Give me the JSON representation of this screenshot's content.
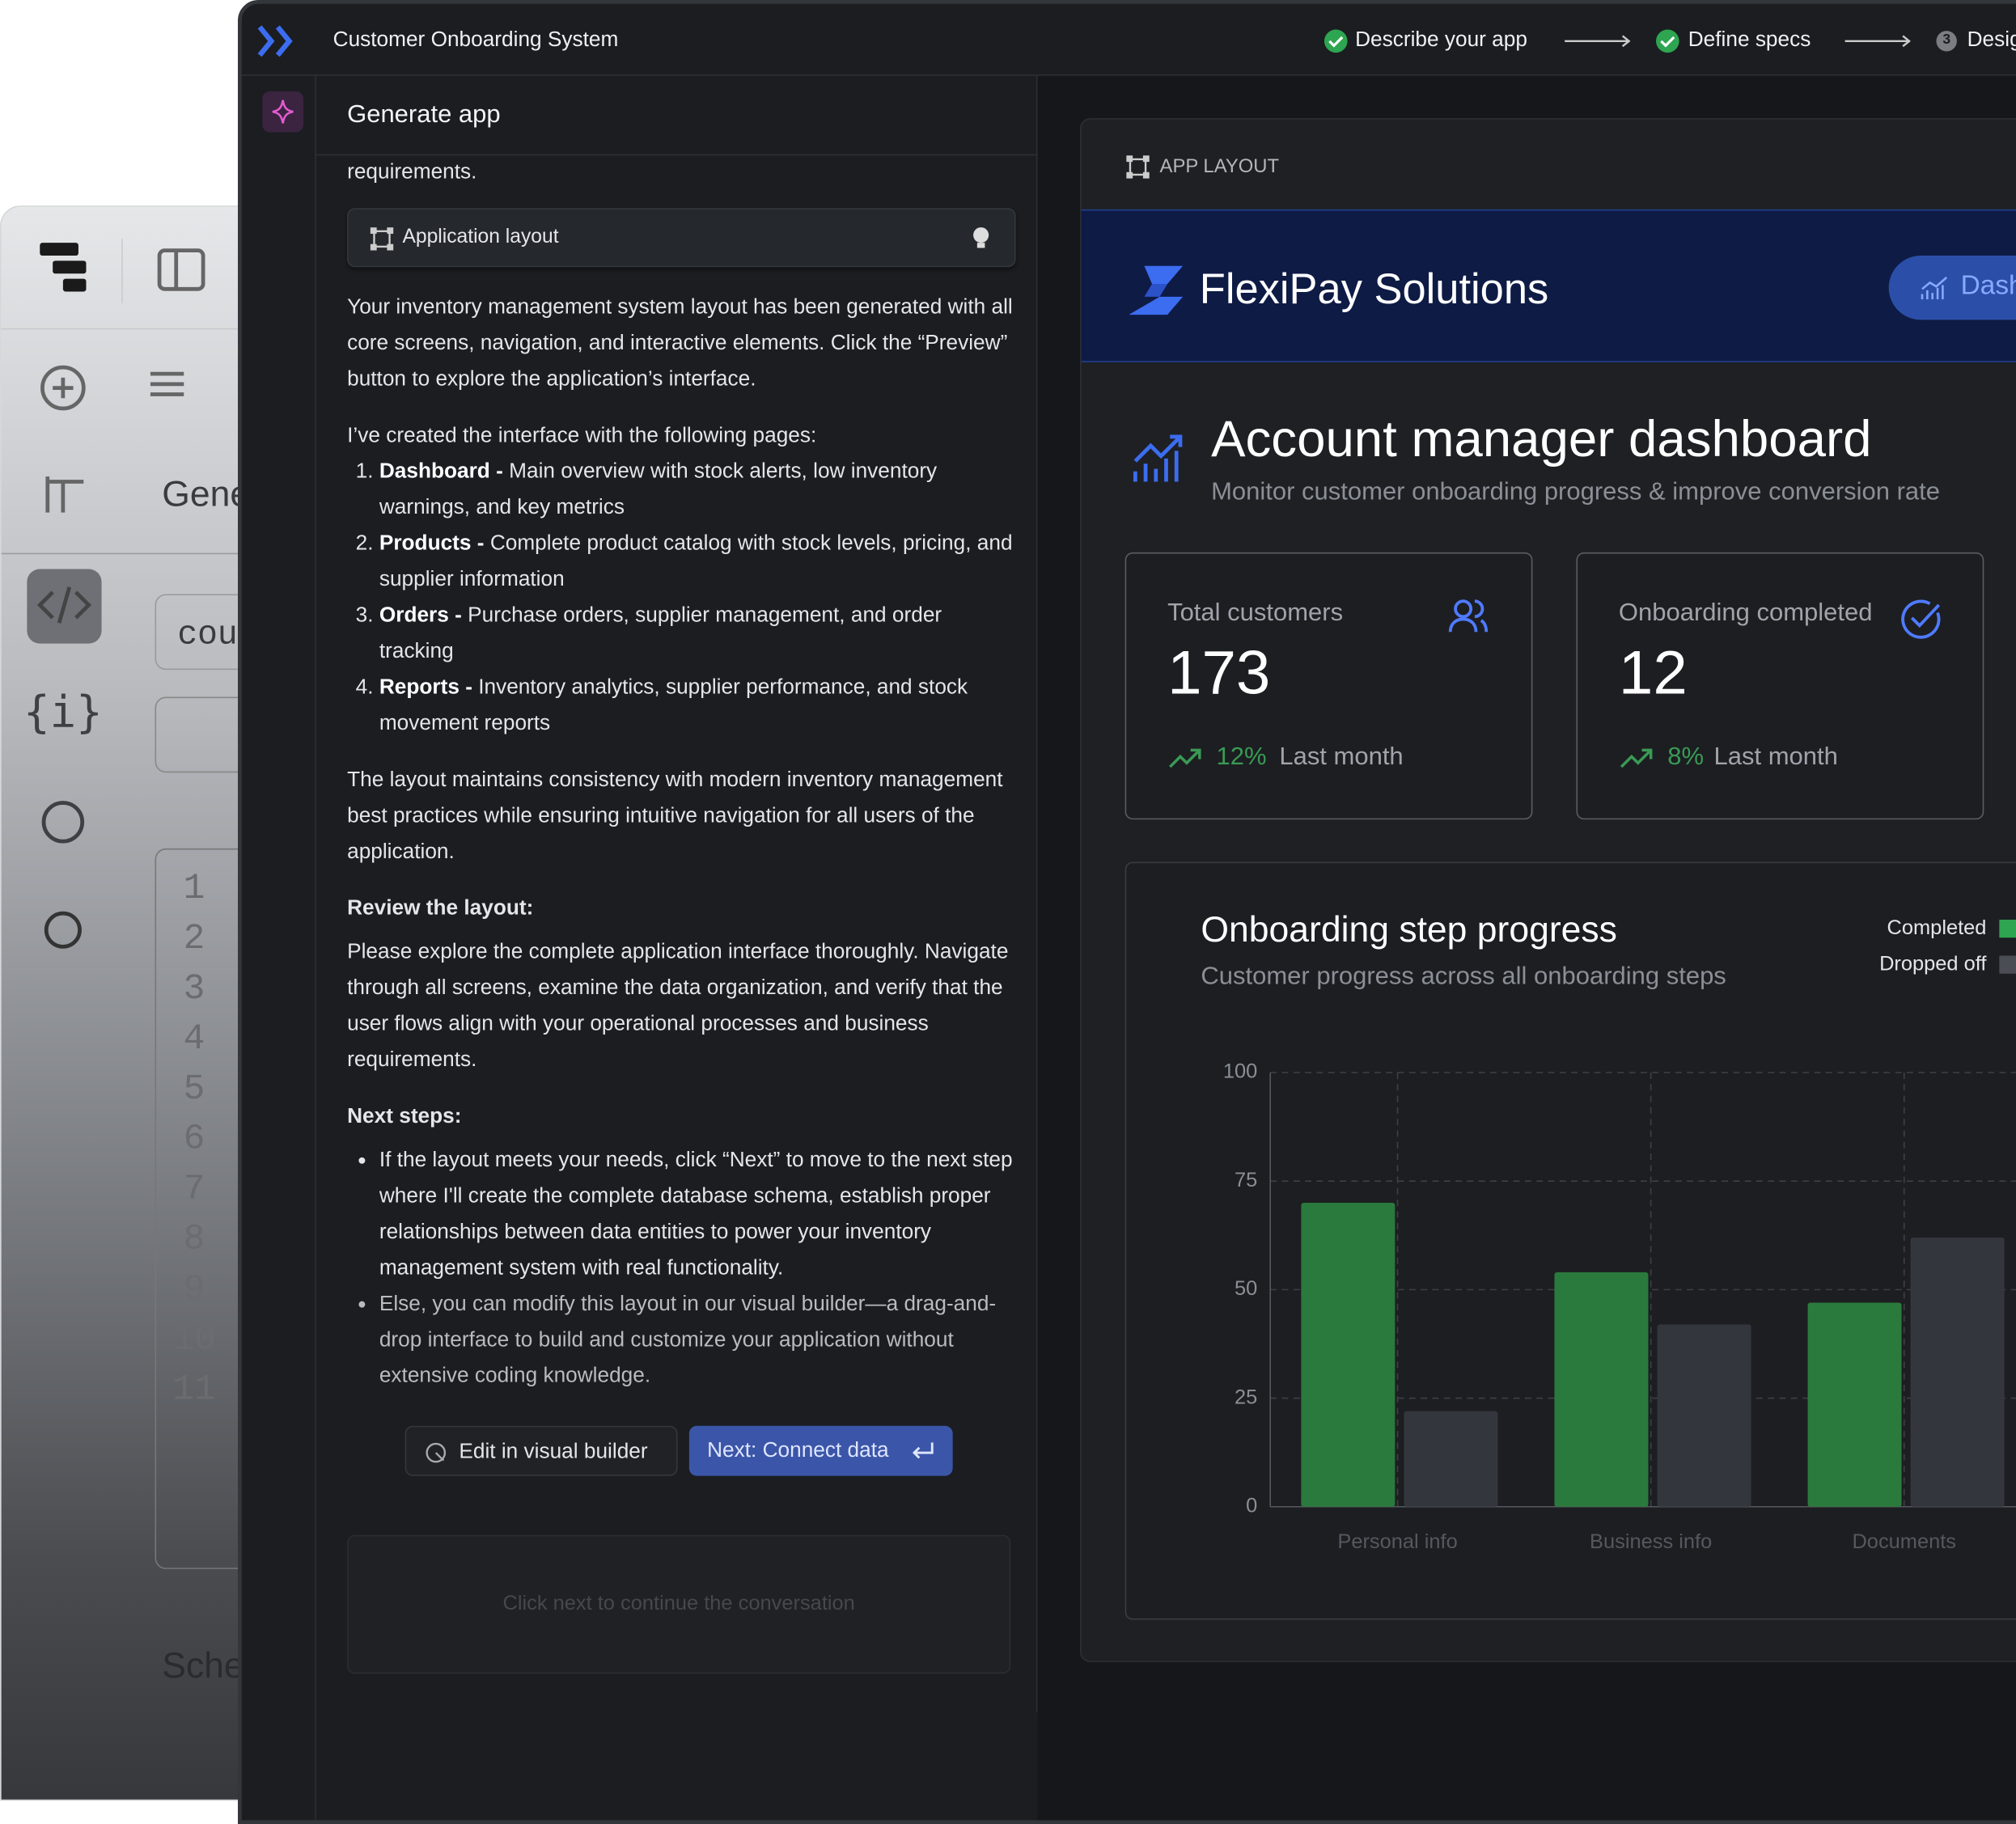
{
  "background_window": {
    "heading": "Gene",
    "input": "cou",
    "line_numbers": [
      "1",
      "2",
      "3",
      "4",
      "5",
      "6",
      "7",
      "8",
      "9",
      "10",
      "11"
    ],
    "footer": "Sche"
  },
  "top_bar": {
    "title": "Customer Onboarding System",
    "steps": [
      {
        "label": "Describe your app"
      },
      {
        "label": "Define specs"
      },
      {
        "number": "3",
        "label": "Desig"
      }
    ]
  },
  "chat": {
    "title": "Generate app",
    "intro_tail": "requirements.",
    "attachment": "Application layout",
    "paragraph1": "Your inventory management system layout has been generated with all core screens, navigation, and interactive elements. Click the “Preview” button to explore the application’s interface.",
    "pages_intro": "I’ve created the interface with the following pages:",
    "pages": [
      {
        "name": "Dashboard -",
        "desc": "Main overview with stock alerts, low inventory warnings, and key metrics"
      },
      {
        "name": "Products -",
        "desc": "Complete product catalog with stock levels, pricing, and supplier information"
      },
      {
        "name": "Orders -",
        "desc": "Purchase orders, supplier management, and order tracking"
      },
      {
        "name": "Reports -",
        "desc": "Inventory analytics, supplier performance, and stock movement reports"
      }
    ],
    "paragraph2": "The layout maintains consistency with modern inventory management best practices while ensuring intuitive navigation for all users of the application.",
    "review_heading": "Review the layout:",
    "review_text": "Please explore the complete application interface thoroughly. Navigate through all screens, examine the data organization, and verify that the user flows align with your operational processes and business requirements.",
    "next_heading": "Next steps:",
    "next_items": [
      "If the layout meets your needs, click “Next” to move to the next step where I'll create the complete database schema, establish proper relationships between data entities to power your inventory management system with real functionality.",
      "Else, you can modify this layout in our visual builder—a drag-and-drop interface to build and customize your application without extensive coding knowledge."
    ],
    "buttons": {
      "edit": "Edit in visual builder",
      "next": "Next: Connect data"
    },
    "input_placeholder": "Click next to continue the conversation"
  },
  "preview": {
    "header": "APP LAYOUT",
    "brand": "FlexiPay Solutions",
    "nav_button": "Dash",
    "title": "Account manager dashboard",
    "subtitle": "Monitor customer onboarding progress & improve conversion rate",
    "stats": [
      {
        "label": "Total customers",
        "value": "173",
        "change": "12%",
        "period": "Last month"
      },
      {
        "label": "Onboarding completed",
        "value": "12",
        "change": "8%",
        "period": "Last month"
      }
    ]
  },
  "chart_data": {
    "type": "bar",
    "title": "Onboarding step progress",
    "subtitle": "Customer progress across all onboarding steps",
    "categories": [
      "Personal info",
      "Business info",
      "Documents"
    ],
    "series": [
      {
        "name": "Completed",
        "color": "#2b7a3d",
        "values": [
          70,
          54,
          47
        ]
      },
      {
        "name": "Dropped off",
        "color": "#33363c",
        "values": [
          22,
          42,
          62
        ]
      }
    ],
    "ylim": [
      0,
      100
    ],
    "yticks": [
      0,
      25,
      50,
      75,
      100
    ],
    "grid": true,
    "legend": "top-right"
  }
}
